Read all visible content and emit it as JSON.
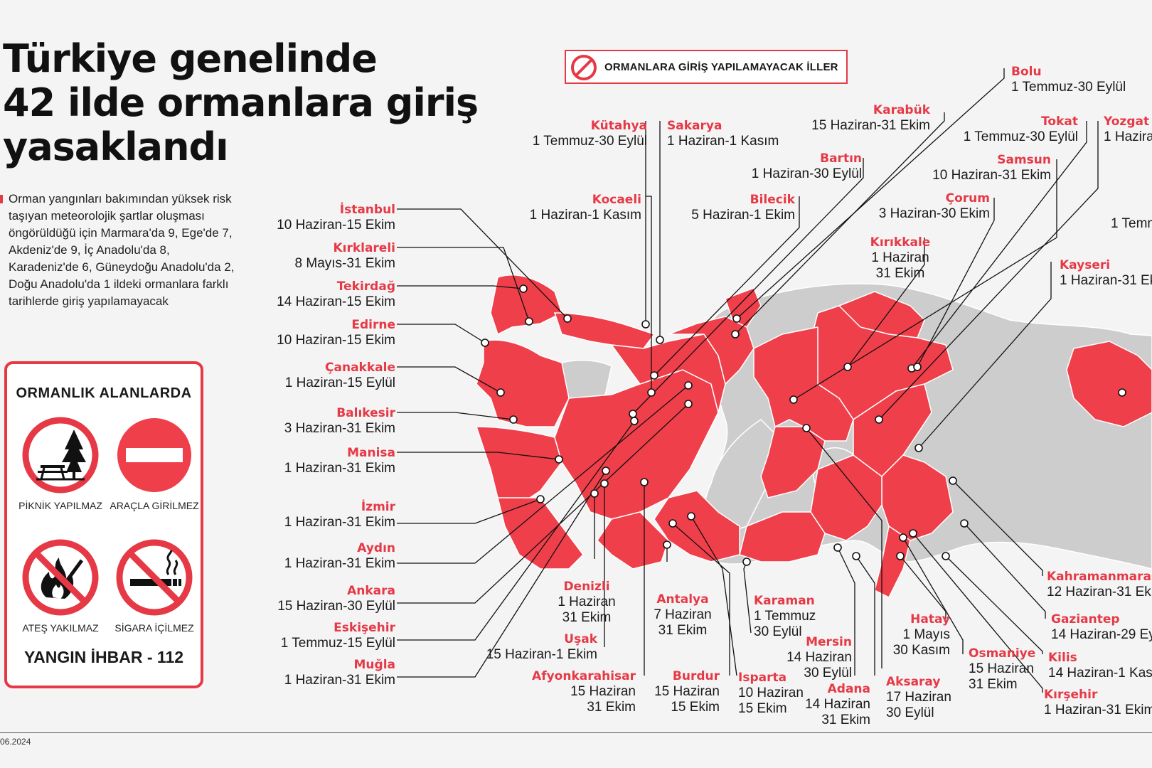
{
  "title": [
    "Türkiye genelinde",
    "42 ilde ormanlara giriş",
    "yasaklandı"
  ],
  "description": "Orman yangınları bakımından yüksek risk taşıyan meteorolojik şartlar oluşması öngörüldüğü için Marmara'da 9, Ege'de 7, Akdeniz'de 9, İç Anadolu'da 8, Karadeniz'de 6, Güneydoğu Anadolu'da 2, Doğu Anadolu'da 1 ildeki ormanlara farklı tarihlerde giriş yapılamayacak",
  "rules": {
    "title": "ORMANLIK ALANLARDA",
    "items": [
      {
        "label": "PİKNİK YAPILMAZ",
        "icon": "picnic-forbidden-icon"
      },
      {
        "label": "ARAÇLA GİRİLMEZ",
        "icon": "no-entry-icon"
      },
      {
        "label": "ATEŞ YAKILMAZ",
        "icon": "fire-forbidden-icon"
      },
      {
        "label": "SİGARA İÇİLMEZ",
        "icon": "no-smoking-icon"
      }
    ],
    "hotline": "YANGIN İHBAR - 112"
  },
  "legend": {
    "label": "ORMANLARA GİRİŞ YAPILAMAYACAK İLLER",
    "icon": "prohibited-icon"
  },
  "colors": {
    "banned": "#ef3f4a",
    "other": "#cdcdcd",
    "accent": "#e63946"
  },
  "provinces": [
    {
      "name": "İstanbul",
      "dates": "10 Haziran-15 Ekim"
    },
    {
      "name": "Kırklareli",
      "dates": "8 Mayıs-31 Ekim"
    },
    {
      "name": "Tekirdağ",
      "dates": "14 Haziran-15 Ekim"
    },
    {
      "name": "Edirne",
      "dates": "10 Haziran-15 Ekim"
    },
    {
      "name": "Çanakkale",
      "dates": "1 Haziran-15 Eylül"
    },
    {
      "name": "Balıkesir",
      "dates": "3 Haziran-31 Ekim"
    },
    {
      "name": "Manisa",
      "dates": "1 Haziran-31 Ekim"
    },
    {
      "name": "İzmir",
      "dates": "1 Haziran-31 Ekim"
    },
    {
      "name": "Aydın",
      "dates": "1 Haziran-31 Ekim"
    },
    {
      "name": "Ankara",
      "dates": "15 Haziran-30 Eylül"
    },
    {
      "name": "Eskişehir",
      "dates": "1 Temmuz-15 Eylül"
    },
    {
      "name": "Muğla",
      "dates": "1 Haziran-31 Ekim"
    },
    {
      "name": "Kütahya",
      "dates": "1 Temmuz-30 Eylül"
    },
    {
      "name": "Sakarya",
      "dates": "1 Haziran-1 Kasım"
    },
    {
      "name": "Kocaeli",
      "dates": "1 Haziran-1 Kasım"
    },
    {
      "name": "Bilecik",
      "dates": "5 Haziran-1 Ekim"
    },
    {
      "name": "Bartın",
      "dates": "1 Haziran-30 Eylül"
    },
    {
      "name": "Karabük",
      "dates": "15 Haziran-31 Ekim"
    },
    {
      "name": "Bolu",
      "dates": "1 Temmuz-30 Eylül"
    },
    {
      "name": "Tokat",
      "dates": "1 Temmuz-30 Eylül"
    },
    {
      "name": "Yozgat",
      "dates": "1 Hazira"
    },
    {
      "name": "Samsun",
      "dates": "10 Haziran-31 Ekim"
    },
    {
      "name": "Çorum",
      "dates": "3 Haziran-30 Ekim"
    },
    {
      "name": "Kırıkkale",
      "dates": [
        "1 Haziran",
        "31 Ekim"
      ]
    },
    {
      "name": "",
      "dates": "1 Temm"
    },
    {
      "name": "Kayseri",
      "dates": "1 Haziran-31 Ek"
    },
    {
      "name": "Denizli",
      "dates": [
        "1 Haziran",
        "31 Ekim"
      ]
    },
    {
      "name": "Uşak",
      "dates": "15 Haziran-1 Ekim"
    },
    {
      "name": "Afyonkarahisar",
      "dates": [
        "15 Haziran",
        "31 Ekim"
      ]
    },
    {
      "name": "Antalya",
      "dates": [
        "7 Haziran",
        "31 Ekim"
      ]
    },
    {
      "name": "Burdur",
      "dates": [
        "15 Haziran",
        "15 Ekim"
      ]
    },
    {
      "name": "Isparta",
      "dates": [
        "10 Haziran",
        "15 Ekim"
      ]
    },
    {
      "name": "Karaman",
      "dates": [
        "1 Temmuz",
        "30 Eylül"
      ]
    },
    {
      "name": "Mersin",
      "dates": [
        "14 Haziran",
        "30 Eylül"
      ]
    },
    {
      "name": "Adana",
      "dates": [
        "14 Haziran",
        "31 Ekim"
      ]
    },
    {
      "name": "Aksaray",
      "dates": [
        "17 Haziran",
        "30 Eylül"
      ]
    },
    {
      "name": "Hatay",
      "dates": [
        "1 Mayıs",
        "30 Kasım"
      ]
    },
    {
      "name": "Osmaniye",
      "dates": [
        "15 Haziran",
        "31 Ekim"
      ]
    },
    {
      "name": "Kahramanmaraş",
      "dates": "12 Haziran-31 Eki"
    },
    {
      "name": "Gaziantep",
      "dates": "14 Haziran-29 Ey"
    },
    {
      "name": "Kilis",
      "dates": "14 Haziran-1 Kası"
    },
    {
      "name": "Kırşehir",
      "dates": "1 Haziran-31 Ekim"
    }
  ],
  "footer": {
    "date": "06.2024"
  }
}
